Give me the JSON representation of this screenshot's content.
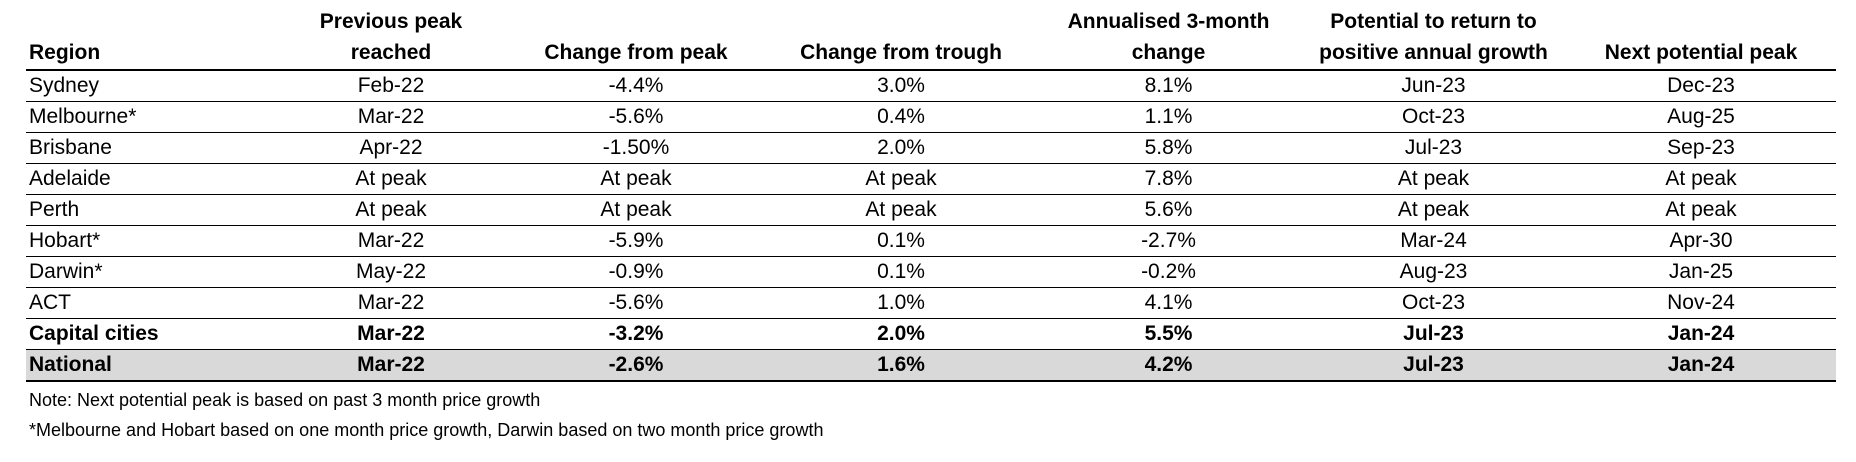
{
  "table": {
    "headers": [
      [
        "Region"
      ],
      [
        "Previous peak reached"
      ],
      [
        "Change from peak"
      ],
      [
        "Change from trough"
      ],
      [
        "Annualised 3-month",
        "change"
      ],
      [
        "Potential to return to",
        "positive annual growth"
      ],
      [
        "Next potential peak"
      ]
    ],
    "rows": [
      {
        "cells": [
          "Sydney",
          "Feb-22",
          "-4.4%",
          "3.0%",
          "8.1%",
          "Jun-23",
          "Dec-23"
        ],
        "style": "normal"
      },
      {
        "cells": [
          "Melbourne*",
          "Mar-22",
          "-5.6%",
          "0.4%",
          "1.1%",
          "Oct-23",
          "Aug-25"
        ],
        "style": "normal"
      },
      {
        "cells": [
          "Brisbane",
          "Apr-22",
          "-1.50%",
          "2.0%",
          "5.8%",
          "Jul-23",
          "Sep-23"
        ],
        "style": "normal"
      },
      {
        "cells": [
          "Adelaide",
          "At peak",
          "At peak",
          "At peak",
          "7.8%",
          "At peak",
          "At peak"
        ],
        "style": "normal"
      },
      {
        "cells": [
          "Perth",
          "At peak",
          "At peak",
          "At peak",
          "5.6%",
          "At peak",
          "At peak"
        ],
        "style": "normal"
      },
      {
        "cells": [
          "Hobart*",
          "Mar-22",
          "-5.9%",
          "0.1%",
          "-2.7%",
          "Mar-24",
          "Apr-30"
        ],
        "style": "normal"
      },
      {
        "cells": [
          "Darwin*",
          "May-22",
          "-0.9%",
          "0.1%",
          "-0.2%",
          "Aug-23",
          "Jan-25"
        ],
        "style": "normal"
      },
      {
        "cells": [
          "ACT",
          "Mar-22",
          "-5.6%",
          "1.0%",
          "4.1%",
          "Oct-23",
          "Nov-24"
        ],
        "style": "normal"
      },
      {
        "cells": [
          "Capital cities",
          "Mar-22",
          "-3.2%",
          "2.0%",
          "5.5%",
          "Jul-23",
          "Jan-24"
        ],
        "style": "bold"
      },
      {
        "cells": [
          "National",
          "Mar-22",
          "-2.6%",
          "1.6%",
          "4.2%",
          "Jul-23",
          "Jan-24"
        ],
        "style": "bold-shaded"
      }
    ]
  },
  "notes": {
    "note1": "Note: Next potential peak is based on past 3 month price growth",
    "note2": "*Melbourne and Hobart based on one month price growth, Darwin based on two month price growth"
  },
  "colors": {
    "shaded_row": "#d9d9d9",
    "rule": "#000000"
  }
}
